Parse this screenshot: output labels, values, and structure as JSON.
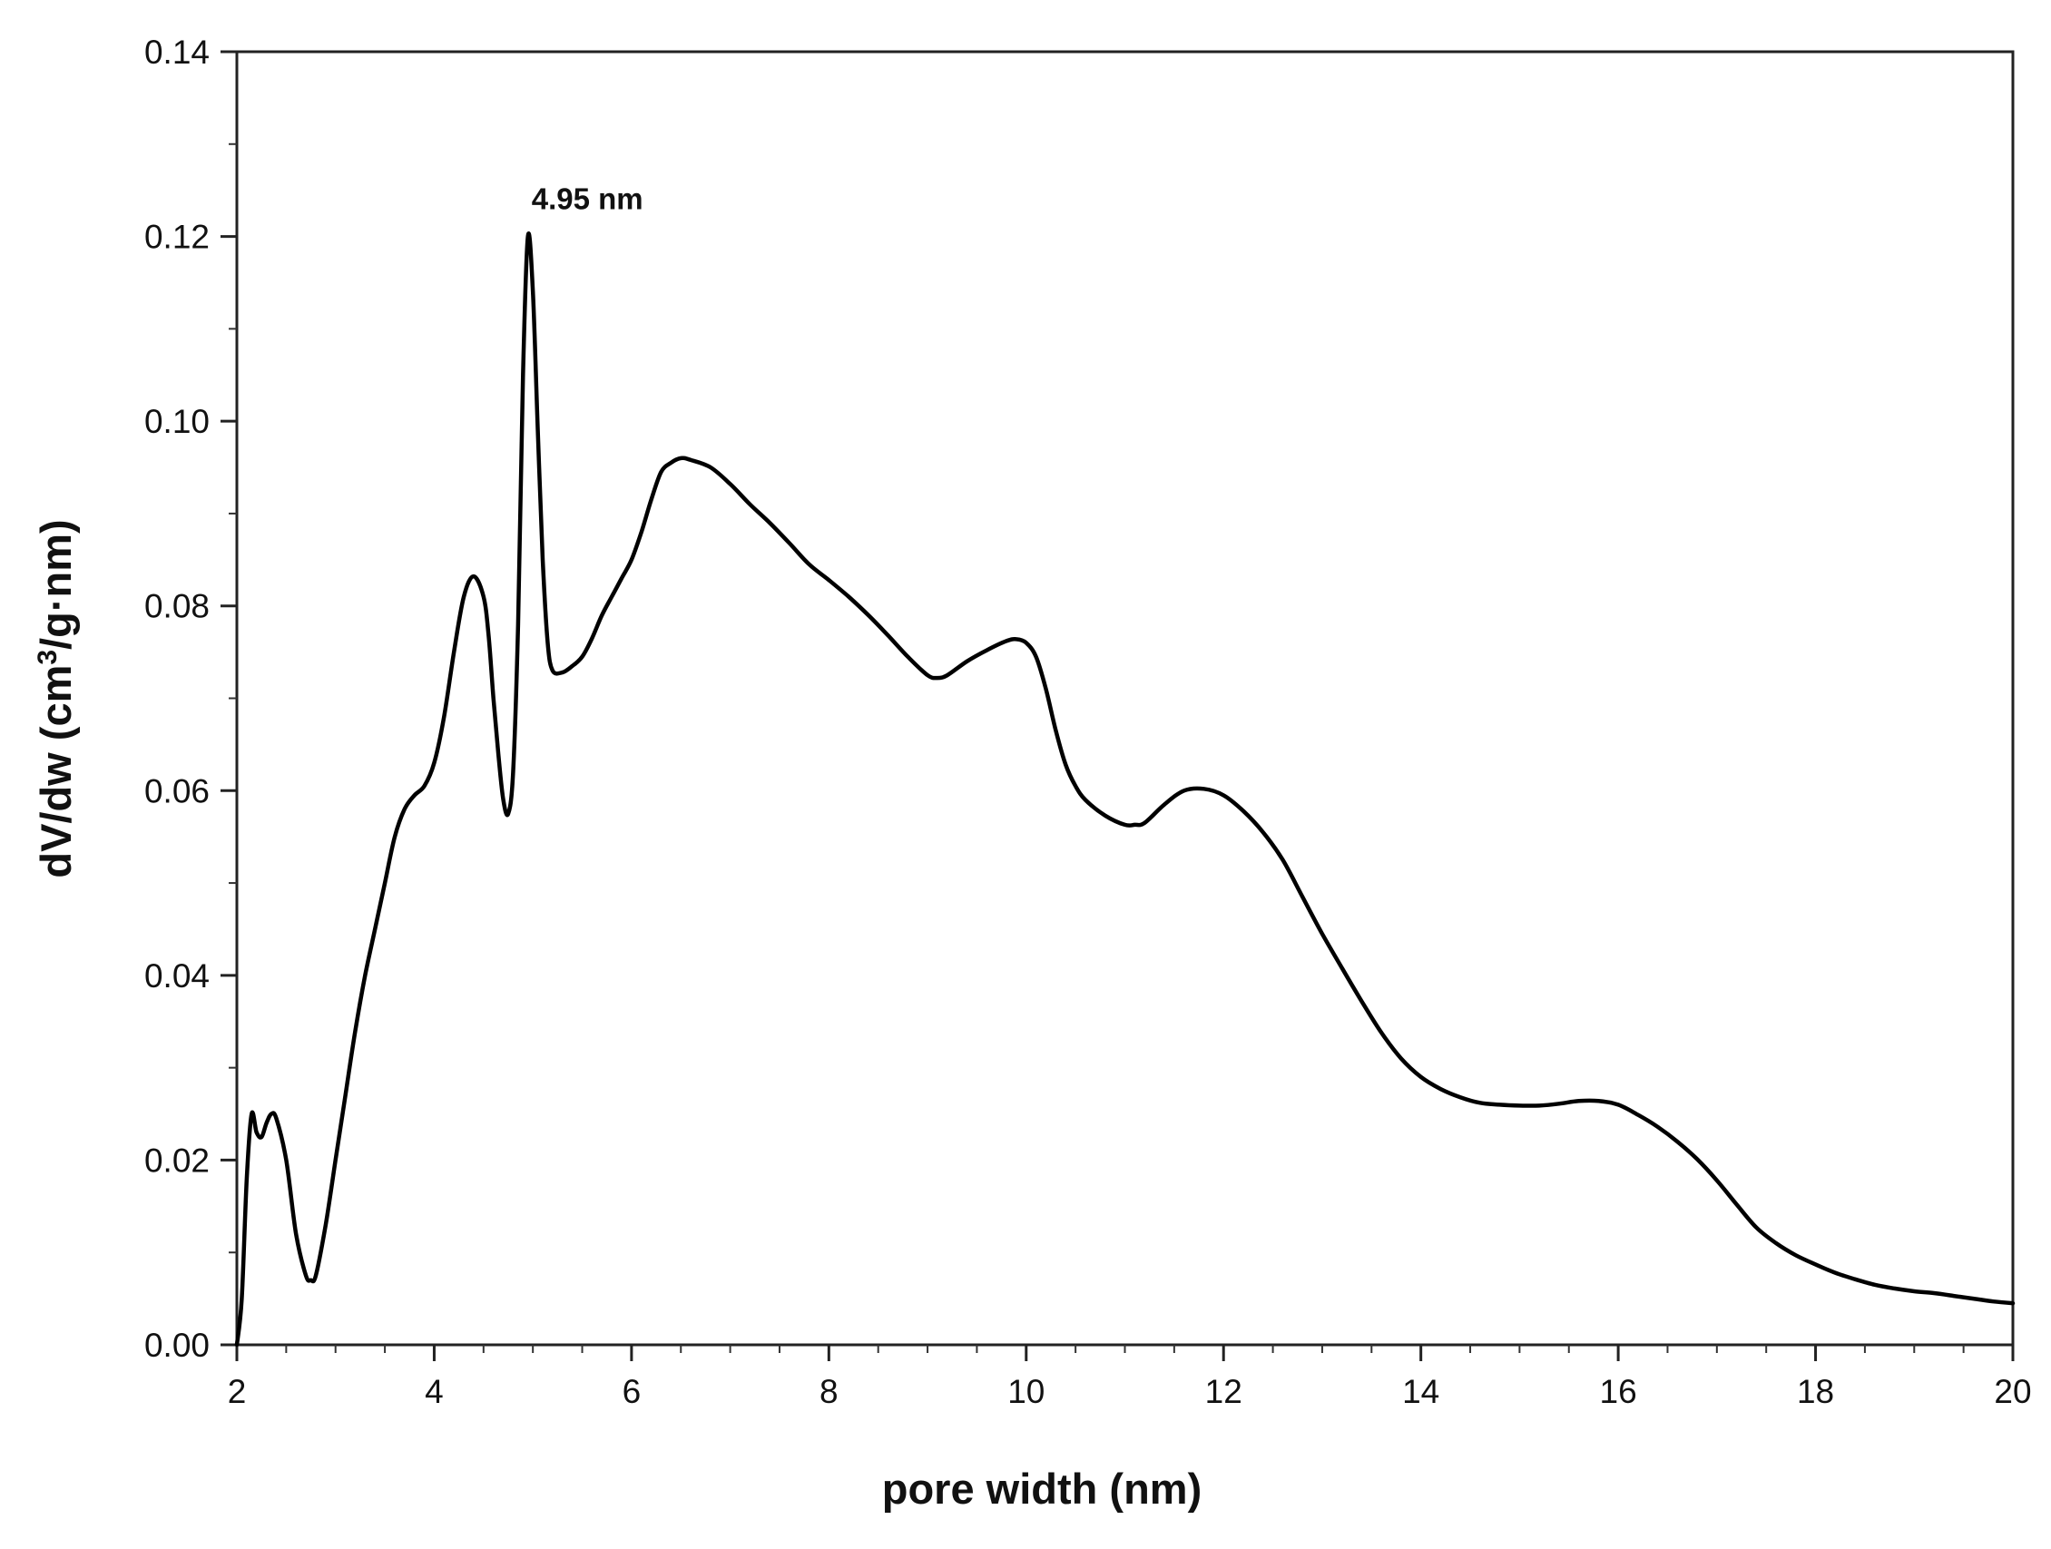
{
  "chart_data": {
    "type": "line",
    "title": "",
    "xlabel": "pore width (nm)",
    "ylabel_main": "dV/dw (cm",
    "ylabel_sup": "3",
    "ylabel_tail": "/g·nm)",
    "xlim": [
      2,
      20
    ],
    "ylim": [
      0,
      0.14
    ],
    "x_ticks": [
      2,
      4,
      6,
      8,
      10,
      12,
      14,
      16,
      18,
      20
    ],
    "y_ticks": [
      0.0,
      0.02,
      0.04,
      0.06,
      0.08,
      0.1,
      0.12,
      0.14
    ],
    "x_tick_labels": [
      "2",
      "4",
      "6",
      "8",
      "10",
      "12",
      "14",
      "16",
      "18",
      "20"
    ],
    "y_tick_labels": [
      "0.00",
      "0.02",
      "0.04",
      "0.06",
      "0.08",
      "0.10",
      "0.12",
      "0.14"
    ],
    "x_minor_step": 0.5,
    "y_minor_step": 0.01,
    "grid": false,
    "legend": "none",
    "line_color": "#000000",
    "annotation": {
      "text": "4.95 nm",
      "x": 4.95,
      "y": 0.12
    },
    "series": [
      {
        "values": [
          [
            2.0,
            0.0
          ],
          [
            2.05,
            0.005
          ],
          [
            2.1,
            0.018
          ],
          [
            2.15,
            0.025
          ],
          [
            2.2,
            0.023
          ],
          [
            2.25,
            0.0225
          ],
          [
            2.3,
            0.024
          ],
          [
            2.35,
            0.025
          ],
          [
            2.4,
            0.0245
          ],
          [
            2.5,
            0.02
          ],
          [
            2.6,
            0.012
          ],
          [
            2.7,
            0.0075
          ],
          [
            2.75,
            0.007
          ],
          [
            2.8,
            0.0075
          ],
          [
            2.9,
            0.013
          ],
          [
            3.0,
            0.02
          ],
          [
            3.1,
            0.027
          ],
          [
            3.2,
            0.034
          ],
          [
            3.3,
            0.04
          ],
          [
            3.4,
            0.045
          ],
          [
            3.5,
            0.05
          ],
          [
            3.6,
            0.055
          ],
          [
            3.7,
            0.058
          ],
          [
            3.8,
            0.0595
          ],
          [
            3.9,
            0.0605
          ],
          [
            4.0,
            0.063
          ],
          [
            4.1,
            0.068
          ],
          [
            4.2,
            0.075
          ],
          [
            4.3,
            0.081
          ],
          [
            4.4,
            0.0832
          ],
          [
            4.5,
            0.081
          ],
          [
            4.55,
            0.077
          ],
          [
            4.6,
            0.07
          ],
          [
            4.65,
            0.064
          ],
          [
            4.7,
            0.059
          ],
          [
            4.75,
            0.0575
          ],
          [
            4.8,
            0.062
          ],
          [
            4.85,
            0.078
          ],
          [
            4.9,
            0.105
          ],
          [
            4.95,
            0.12
          ],
          [
            5.0,
            0.114
          ],
          [
            5.05,
            0.099
          ],
          [
            5.1,
            0.085
          ],
          [
            5.15,
            0.076
          ],
          [
            5.2,
            0.073
          ],
          [
            5.3,
            0.0728
          ],
          [
            5.4,
            0.0735
          ],
          [
            5.5,
            0.0745
          ],
          [
            5.6,
            0.0765
          ],
          [
            5.7,
            0.079
          ],
          [
            5.8,
            0.081
          ],
          [
            5.9,
            0.083
          ],
          [
            6.0,
            0.085
          ],
          [
            6.1,
            0.088
          ],
          [
            6.2,
            0.0915
          ],
          [
            6.3,
            0.0945
          ],
          [
            6.4,
            0.0955
          ],
          [
            6.5,
            0.096
          ],
          [
            6.6,
            0.0958
          ],
          [
            6.8,
            0.095
          ],
          [
            7.0,
            0.0932
          ],
          [
            7.2,
            0.091
          ],
          [
            7.4,
            0.089
          ],
          [
            7.6,
            0.0868
          ],
          [
            7.8,
            0.0845
          ],
          [
            8.0,
            0.0828
          ],
          [
            8.2,
            0.081
          ],
          [
            8.4,
            0.079
          ],
          [
            8.6,
            0.0768
          ],
          [
            8.8,
            0.0745
          ],
          [
            9.0,
            0.0725
          ],
          [
            9.1,
            0.0722
          ],
          [
            9.2,
            0.0725
          ],
          [
            9.4,
            0.074
          ],
          [
            9.6,
            0.0752
          ],
          [
            9.8,
            0.0762
          ],
          [
            9.9,
            0.0764
          ],
          [
            10.0,
            0.076
          ],
          [
            10.1,
            0.0745
          ],
          [
            10.2,
            0.071
          ],
          [
            10.3,
            0.0665
          ],
          [
            10.4,
            0.0628
          ],
          [
            10.5,
            0.0605
          ],
          [
            10.6,
            0.059
          ],
          [
            10.8,
            0.0573
          ],
          [
            11.0,
            0.0563
          ],
          [
            11.1,
            0.0563
          ],
          [
            11.2,
            0.0565
          ],
          [
            11.4,
            0.0585
          ],
          [
            11.6,
            0.06
          ],
          [
            11.8,
            0.0602
          ],
          [
            12.0,
            0.0595
          ],
          [
            12.2,
            0.0578
          ],
          [
            12.4,
            0.0555
          ],
          [
            12.6,
            0.0525
          ],
          [
            12.8,
            0.0485
          ],
          [
            13.0,
            0.0445
          ],
          [
            13.2,
            0.0408
          ],
          [
            13.4,
            0.0372
          ],
          [
            13.6,
            0.0338
          ],
          [
            13.8,
            0.031
          ],
          [
            14.0,
            0.029
          ],
          [
            14.2,
            0.0277
          ],
          [
            14.4,
            0.0268
          ],
          [
            14.6,
            0.0262
          ],
          [
            14.8,
            0.026
          ],
          [
            15.0,
            0.0259
          ],
          [
            15.2,
            0.0259
          ],
          [
            15.4,
            0.0261
          ],
          [
            15.6,
            0.0264
          ],
          [
            15.8,
            0.0264
          ],
          [
            16.0,
            0.026
          ],
          [
            16.2,
            0.0249
          ],
          [
            16.4,
            0.0236
          ],
          [
            16.6,
            0.022
          ],
          [
            16.8,
            0.0201
          ],
          [
            17.0,
            0.0178
          ],
          [
            17.2,
            0.0152
          ],
          [
            17.4,
            0.0127
          ],
          [
            17.6,
            0.011
          ],
          [
            17.8,
            0.0097
          ],
          [
            18.0,
            0.0087
          ],
          [
            18.2,
            0.0078
          ],
          [
            18.4,
            0.0071
          ],
          [
            18.6,
            0.0065
          ],
          [
            18.8,
            0.0061
          ],
          [
            19.0,
            0.0058
          ],
          [
            19.2,
            0.0056
          ],
          [
            19.4,
            0.0053
          ],
          [
            19.6,
            0.005
          ],
          [
            19.8,
            0.0047
          ],
          [
            20.0,
            0.0045
          ]
        ]
      }
    ]
  }
}
